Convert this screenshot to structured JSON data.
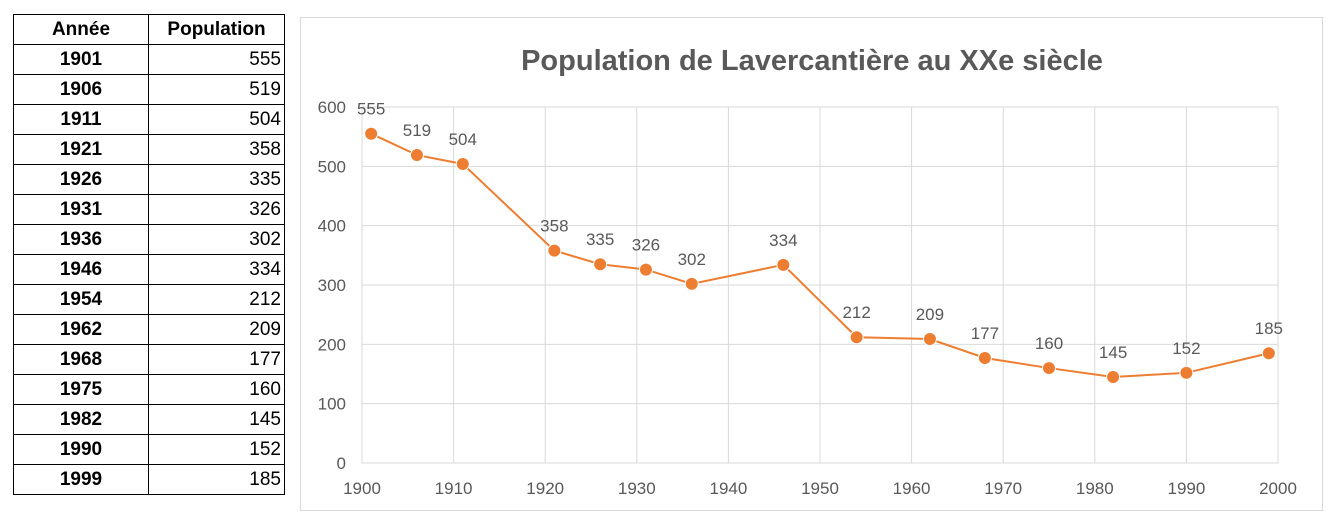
{
  "table": {
    "headers": [
      "Année",
      "Population"
    ],
    "rows": [
      [
        "1901",
        "555"
      ],
      [
        "1906",
        "519"
      ],
      [
        "1911",
        "504"
      ],
      [
        "1921",
        "358"
      ],
      [
        "1926",
        "335"
      ],
      [
        "1931",
        "326"
      ],
      [
        "1936",
        "302"
      ],
      [
        "1946",
        "334"
      ],
      [
        "1954",
        "212"
      ],
      [
        "1962",
        "209"
      ],
      [
        "1968",
        "177"
      ],
      [
        "1975",
        "160"
      ],
      [
        "1982",
        "145"
      ],
      [
        "1990",
        "152"
      ],
      [
        "1999",
        "185"
      ]
    ]
  },
  "chart_data": {
    "type": "line",
    "title": "Population de Lavercantière au XXe siècle",
    "xlabel": "",
    "ylabel": "",
    "x": [
      1901,
      1906,
      1911,
      1921,
      1926,
      1931,
      1936,
      1946,
      1954,
      1962,
      1968,
      1975,
      1982,
      1990,
      1999
    ],
    "series": [
      {
        "values": [
          555,
          519,
          504,
          358,
          335,
          326,
          302,
          334,
          212,
          209,
          177,
          160,
          145,
          152,
          185
        ],
        "color": "#ed7d31"
      }
    ],
    "xlim": [
      1900,
      2000
    ],
    "ylim": [
      0,
      600
    ],
    "xticks": [
      1900,
      1910,
      1920,
      1930,
      1940,
      1950,
      1960,
      1970,
      1980,
      1990,
      2000
    ],
    "yticks": [
      0,
      100,
      200,
      300,
      400,
      500,
      600
    ],
    "grid": true,
    "data_labels": true,
    "legend": "none"
  }
}
